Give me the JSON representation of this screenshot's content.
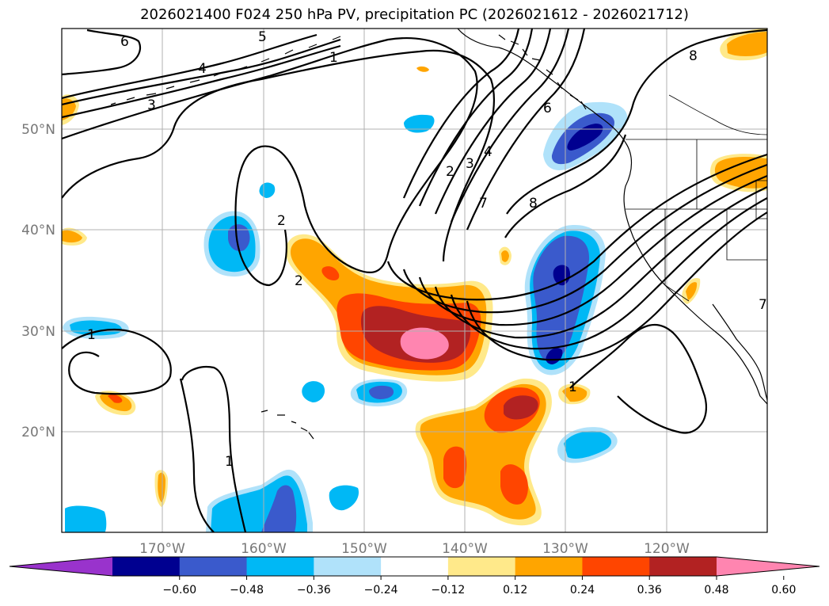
{
  "title": "2026021400 F024 250 hPa PV, precipitation PC (2026021612 - 2026021712)",
  "map": {
    "lat_labels": [
      "50°N",
      "40°N",
      "30°N",
      "20°N"
    ],
    "lon_labels": [
      "170°W",
      "160°W",
      "150°W",
      "140°W",
      "130°W",
      "120°W"
    ],
    "lat_values": [
      50,
      40,
      30,
      20
    ],
    "lon_values": [
      -170,
      -160,
      -150,
      -140,
      -130,
      -120
    ],
    "contour_labels": [
      "6",
      "5",
      "4",
      "3",
      "1",
      "2",
      "3",
      "4",
      "6",
      "7",
      "8",
      "8",
      "2",
      "2",
      "1",
      "1",
      "1",
      "7"
    ]
  },
  "colorbar": {
    "ticks": [
      "−0.60",
      "−0.48",
      "−0.36",
      "−0.24",
      "−0.12",
      "0.12",
      "0.24",
      "0.36",
      "0.48",
      "0.60"
    ],
    "colors": [
      "#9933cc",
      "#000090",
      "#3a5acc",
      "#00b8f5",
      "#b0e2fa",
      "#ffffff",
      "#ffe98a",
      "#ffa500",
      "#ff4500",
      "#b22222",
      "#ff85b0"
    ],
    "extend": "both"
  },
  "palette": {
    "neg_dark": "#000090",
    "neg_mid": "#3a5acc",
    "neg_light": "#00b8f5",
    "neg_pale": "#b0e2fa",
    "pos_pale": "#ffe98a",
    "pos_light": "#ffa500",
    "pos_mid": "#ff4500",
    "pos_dark": "#b22222",
    "pos_max": "#ff85b0"
  }
}
